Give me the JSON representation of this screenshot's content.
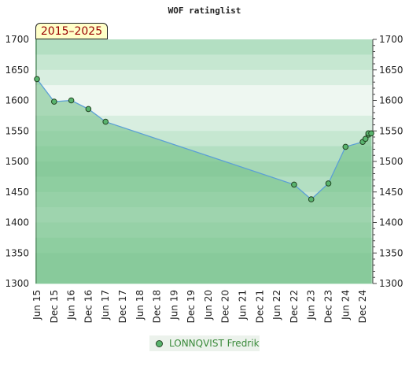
{
  "header": {
    "title": "WOF ratinglist",
    "period": "2015–2025"
  },
  "legend": {
    "label": "LONNQVIST Fredrik"
  },
  "colors": {
    "line": "#5b9fd6",
    "marker_fill": "#59b46e",
    "marker_stroke": "#224422",
    "area_fill": "#6fbf85",
    "band_colors": [
      "#b3dfc2",
      "#c6e7d1",
      "#d8eee0",
      "#eef7f1",
      "#eef7f1",
      "#d8eee0",
      "#c6e7d1",
      "#b3dfc2",
      "#a6d8b5",
      "#b3dfc2",
      "#c6e7d1",
      "#d8eee0",
      "#c6e7d1",
      "#b3dfc2",
      "#a6d8b5",
      "#a6d8b5"
    ]
  },
  "chart_data": {
    "type": "area",
    "title": "WOF ratinglist",
    "xlabel": "",
    "ylabel": "",
    "ylim": [
      1300,
      1700
    ],
    "xlim": [
      "2015-06",
      "2025-03"
    ],
    "yticks": [
      1300,
      1350,
      1400,
      1450,
      1500,
      1550,
      1600,
      1650,
      1700
    ],
    "xticks": [
      "Jun 15",
      "Dec 15",
      "Jun 16",
      "Dec 16",
      "Jun 17",
      "Dec 17",
      "Jun 18",
      "Dec 18",
      "Jun 19",
      "Dec 19",
      "Jun 20",
      "Dec 20",
      "Jun 21",
      "Dec 21",
      "Jun 22",
      "Dec 22",
      "Jun 23",
      "Dec 23",
      "Jun 24",
      "Dec 24"
    ],
    "grid": true,
    "legend_position": "bottom-center",
    "series": [
      {
        "name": "LONNQVIST Fredrik",
        "x": [
          "2015-06",
          "2015-12",
          "2016-06",
          "2016-12",
          "2017-06",
          "2022-12",
          "2023-06",
          "2023-12",
          "2024-06",
          "2024-12",
          "2025-01",
          "2025-02",
          "2025-02",
          "2025-03"
        ],
        "y": [
          1635,
          1598,
          1600,
          1586,
          1565,
          1462,
          1438,
          1464,
          1524,
          1532,
          1537,
          1544,
          1546,
          1546
        ]
      }
    ]
  }
}
